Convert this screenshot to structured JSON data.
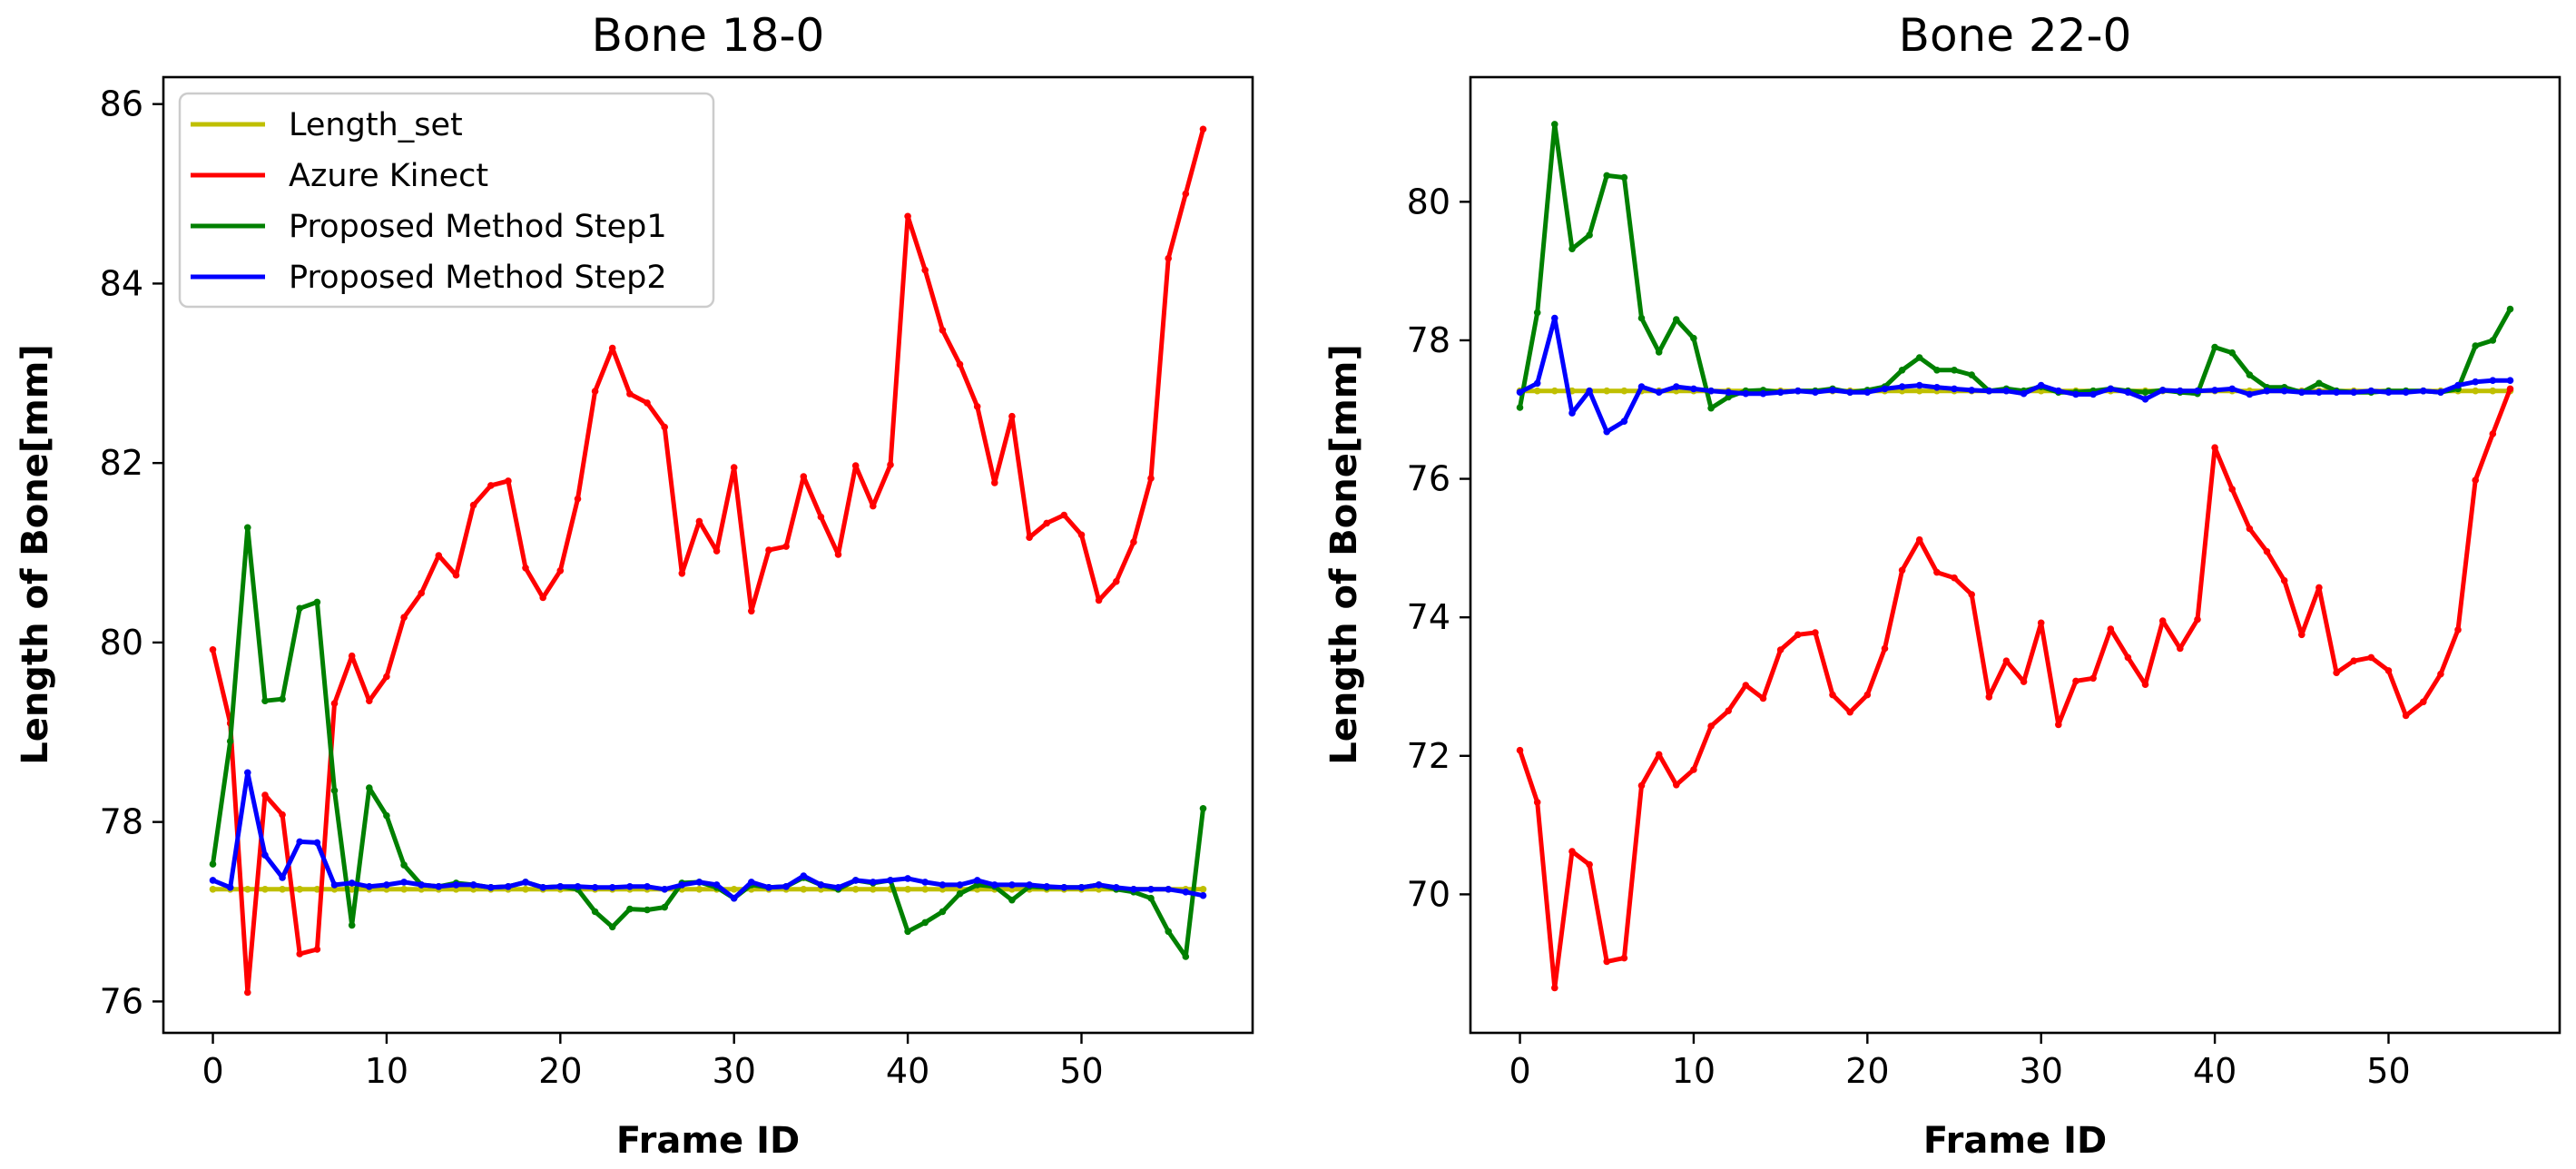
{
  "figure": {
    "xlabel": "Frame ID",
    "ylabel": "Length of Bone[mm]"
  },
  "legend": {
    "entries": [
      {
        "label": "Length_set",
        "color": "#bfbf00"
      },
      {
        "label": "Azure Kinect",
        "color": "#ff0000"
      },
      {
        "label": "Proposed Method Step1",
        "color": "#008000"
      },
      {
        "label": "Proposed Method Step2",
        "color": "#0000ff"
      }
    ]
  },
  "chart_data": [
    {
      "type": "line",
      "title": "Bone 18-0",
      "xlabel": "Frame ID",
      "ylabel": "Length of Bone[mm]",
      "xlim": [
        -2.85,
        59.85
      ],
      "ylim": [
        75.65,
        86.3
      ],
      "xticks": [
        0,
        10,
        20,
        30,
        40,
        50
      ],
      "yticks": [
        76,
        78,
        80,
        82,
        84,
        86
      ],
      "grid": false,
      "legend_position": "upper left",
      "series": [
        {
          "name": "Length_set",
          "color": "#bfbf00",
          "values": [
            77.25,
            77.25,
            77.25,
            77.25,
            77.25,
            77.25,
            77.25,
            77.25,
            77.25,
            77.25,
            77.25,
            77.25,
            77.25,
            77.25,
            77.25,
            77.25,
            77.25,
            77.25,
            77.25,
            77.25,
            77.25,
            77.25,
            77.25,
            77.25,
            77.25,
            77.25,
            77.25,
            77.25,
            77.25,
            77.25,
            77.25,
            77.25,
            77.25,
            77.25,
            77.25,
            77.25,
            77.25,
            77.25,
            77.25,
            77.25,
            77.25,
            77.25,
            77.25,
            77.25,
            77.25,
            77.25,
            77.25,
            77.25,
            77.25,
            77.25,
            77.25,
            77.25,
            77.25,
            77.25,
            77.25,
            77.25,
            77.25,
            77.25
          ]
        },
        {
          "name": "Azure Kinect",
          "color": "#ff0000",
          "values": [
            79.92,
            79.1,
            76.1,
            78.3,
            78.08,
            76.53,
            76.58,
            79.32,
            79.85,
            79.35,
            79.62,
            80.28,
            80.55,
            80.97,
            80.75,
            81.53,
            81.75,
            81.8,
            80.83,
            80.5,
            80.8,
            81.6,
            82.8,
            83.28,
            82.77,
            82.67,
            82.4,
            80.77,
            81.35,
            81.02,
            81.95,
            80.35,
            81.03,
            81.07,
            81.85,
            81.4,
            80.98,
            81.97,
            81.52,
            81.98,
            84.75,
            84.15,
            83.48,
            83.1,
            82.63,
            81.78,
            82.52,
            81.17,
            81.33,
            81.42,
            81.2,
            80.47,
            80.68,
            81.12,
            81.83,
            84.28,
            85.0,
            85.72
          ]
        },
        {
          "name": "Proposed Method Step1",
          "color": "#008000",
          "values": [
            77.53,
            78.9,
            81.28,
            79.35,
            79.37,
            80.38,
            80.45,
            78.35,
            76.85,
            78.38,
            78.07,
            77.52,
            77.3,
            77.28,
            77.32,
            77.3,
            77.27,
            77.28,
            77.33,
            77.27,
            77.28,
            77.25,
            77.0,
            76.83,
            77.03,
            77.02,
            77.05,
            77.32,
            77.33,
            77.27,
            77.15,
            77.3,
            77.27,
            77.28,
            77.38,
            77.3,
            77.25,
            77.35,
            77.32,
            77.35,
            76.78,
            76.88,
            77.0,
            77.2,
            77.3,
            77.28,
            77.13,
            77.28,
            77.27,
            77.27,
            77.27,
            77.3,
            77.25,
            77.22,
            77.15,
            76.78,
            76.5,
            78.15
          ]
        },
        {
          "name": "Proposed Method Step2",
          "color": "#0000ff",
          "values": [
            77.35,
            77.27,
            78.55,
            77.63,
            77.38,
            77.78,
            77.77,
            77.3,
            77.32,
            77.28,
            77.3,
            77.33,
            77.3,
            77.28,
            77.3,
            77.3,
            77.27,
            77.28,
            77.33,
            77.27,
            77.28,
            77.28,
            77.27,
            77.27,
            77.28,
            77.28,
            77.25,
            77.3,
            77.33,
            77.3,
            77.15,
            77.33,
            77.27,
            77.28,
            77.4,
            77.3,
            77.27,
            77.35,
            77.33,
            77.35,
            77.37,
            77.33,
            77.3,
            77.3,
            77.35,
            77.3,
            77.3,
            77.3,
            77.28,
            77.27,
            77.27,
            77.3,
            77.27,
            77.25,
            77.25,
            77.25,
            77.22,
            77.18
          ]
        }
      ]
    },
    {
      "type": "line",
      "title": "Bone 22-0",
      "xlabel": "Frame ID",
      "ylabel": "Length of Bone[mm]",
      "xlim": [
        -2.85,
        59.85
      ],
      "ylim": [
        68.0,
        81.8
      ],
      "xticks": [
        0,
        10,
        20,
        30,
        40,
        50
      ],
      "yticks": [
        70,
        72,
        74,
        76,
        78,
        80
      ],
      "grid": false,
      "series": [
        {
          "name": "Length_set",
          "color": "#bfbf00",
          "values": [
            77.27,
            77.27,
            77.27,
            77.27,
            77.27,
            77.27,
            77.27,
            77.27,
            77.27,
            77.27,
            77.27,
            77.27,
            77.27,
            77.27,
            77.27,
            77.27,
            77.27,
            77.27,
            77.27,
            77.27,
            77.27,
            77.27,
            77.27,
            77.27,
            77.27,
            77.27,
            77.27,
            77.27,
            77.27,
            77.27,
            77.27,
            77.27,
            77.27,
            77.27,
            77.27,
            77.27,
            77.27,
            77.27,
            77.27,
            77.27,
            77.27,
            77.27,
            77.27,
            77.27,
            77.27,
            77.27,
            77.27,
            77.27,
            77.27,
            77.27,
            77.27,
            77.27,
            77.27,
            77.27,
            77.27,
            77.27,
            77.27,
            77.27
          ]
        },
        {
          "name": "Azure Kinect",
          "color": "#ff0000",
          "values": [
            72.08,
            71.33,
            68.65,
            70.62,
            70.43,
            69.03,
            69.08,
            71.57,
            72.02,
            71.58,
            71.8,
            72.43,
            72.65,
            73.02,
            72.83,
            73.53,
            73.75,
            73.78,
            72.88,
            72.63,
            72.88,
            73.55,
            74.68,
            75.12,
            74.65,
            74.57,
            74.33,
            72.85,
            73.37,
            73.07,
            73.92,
            72.45,
            73.08,
            73.12,
            73.83,
            73.42,
            73.03,
            73.95,
            73.55,
            73.97,
            76.45,
            75.85,
            75.28,
            74.95,
            74.53,
            73.75,
            74.43,
            73.2,
            73.37,
            73.42,
            73.23,
            72.58,
            72.78,
            73.18,
            73.82,
            75.98,
            76.65,
            77.3
          ]
        },
        {
          "name": "Proposed Method Step1",
          "color": "#008000",
          "values": [
            77.03,
            78.4,
            81.12,
            79.32,
            79.52,
            80.38,
            80.35,
            78.32,
            77.83,
            78.3,
            78.03,
            77.02,
            77.18,
            77.27,
            77.28,
            77.25,
            77.27,
            77.27,
            77.3,
            77.25,
            77.28,
            77.33,
            77.57,
            77.75,
            77.57,
            77.57,
            77.5,
            77.27,
            77.3,
            77.27,
            77.33,
            77.25,
            77.25,
            77.27,
            77.3,
            77.27,
            77.25,
            77.28,
            77.25,
            77.23,
            77.9,
            77.82,
            77.5,
            77.32,
            77.32,
            77.25,
            77.38,
            77.27,
            77.25,
            77.25,
            77.27,
            77.27,
            77.27,
            77.25,
            77.3,
            77.92,
            78.0,
            78.45
          ]
        },
        {
          "name": "Proposed Method Step2",
          "color": "#0000ff",
          "values": [
            77.25,
            77.38,
            78.32,
            76.95,
            77.27,
            76.68,
            76.83,
            77.33,
            77.25,
            77.33,
            77.3,
            77.27,
            77.25,
            77.23,
            77.23,
            77.25,
            77.27,
            77.25,
            77.28,
            77.25,
            77.25,
            77.3,
            77.33,
            77.35,
            77.32,
            77.3,
            77.28,
            77.27,
            77.27,
            77.23,
            77.35,
            77.27,
            77.22,
            77.22,
            77.3,
            77.25,
            77.15,
            77.28,
            77.27,
            77.27,
            77.28,
            77.3,
            77.22,
            77.27,
            77.27,
            77.25,
            77.25,
            77.25,
            77.25,
            77.27,
            77.25,
            77.25,
            77.27,
            77.25,
            77.35,
            77.4,
            77.42,
            77.42
          ]
        }
      ]
    }
  ]
}
